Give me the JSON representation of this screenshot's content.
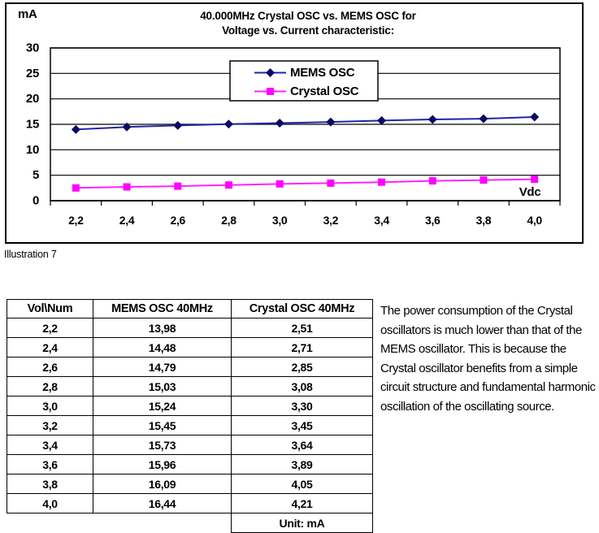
{
  "figure": {
    "unit_label": "mA",
    "title_line1": "40.000MHz Crystal OSC vs. MEMS OSC for",
    "title_line2": "Voltage vs. Current characteristic:",
    "caption": "Illustration 7"
  },
  "chart_data": {
    "type": "line",
    "title": "40.000MHz Crystal OSC vs. MEMS OSC for Voltage vs. Current characteristic:",
    "ylabel": "mA",
    "xlabel": "Vdc",
    "categories": [
      "2,2",
      "2,4",
      "2,6",
      "2,8",
      "3,0",
      "3,2",
      "3,4",
      "3,6",
      "3,8",
      "4,0"
    ],
    "x_values": [
      2.2,
      2.4,
      2.6,
      2.8,
      3.0,
      3.2,
      3.4,
      3.6,
      3.8,
      4.0
    ],
    "ylim": [
      0,
      30
    ],
    "y_ticks": [
      0,
      5,
      10,
      15,
      20,
      25,
      30
    ],
    "grid": "horizontal",
    "legend_position": "top-center-inside",
    "series": [
      {
        "name": "MEMS OSC",
        "marker": "diamond",
        "line_color": "#2424a3",
        "marker_color": "#0b0b66",
        "values": [
          13.98,
          14.48,
          14.79,
          15.03,
          15.24,
          15.45,
          15.73,
          15.96,
          16.09,
          16.44
        ]
      },
      {
        "name": "Crystal OSC",
        "marker": "square",
        "line_color": "#ff22ff",
        "marker_color": "#ff00ff",
        "values": [
          2.51,
          2.71,
          2.85,
          3.08,
          3.3,
          3.45,
          3.64,
          3.89,
          4.05,
          4.21
        ]
      }
    ]
  },
  "table": {
    "headers": [
      "Vol\\Num",
      "MEMS OSC 40MHz",
      "Crystal OSC 40MHz"
    ],
    "rows": [
      [
        "2,2",
        "13,98",
        "2,51"
      ],
      [
        "2,4",
        "14,48",
        "2,71"
      ],
      [
        "2,6",
        "14,79",
        "2,85"
      ],
      [
        "2,8",
        "15,03",
        "3,08"
      ],
      [
        "3,0",
        "15,24",
        "3,30"
      ],
      [
        "3,2",
        "15,45",
        "3,45"
      ],
      [
        "3,4",
        "15,73",
        "3,64"
      ],
      [
        "3,6",
        "15,96",
        "3,89"
      ],
      [
        "3,8",
        "16,09",
        "4,05"
      ],
      [
        "4,0",
        "16,44",
        "4,21"
      ]
    ],
    "footer": "Unit: mA"
  },
  "note": {
    "text": "The power consumption of the Crystal oscillators is much lower than that of the MEMS oscillator. This is because the Crystal oscillator benefits from a simple circuit structure and fundamental harmonic oscillation of the oscillating source."
  }
}
